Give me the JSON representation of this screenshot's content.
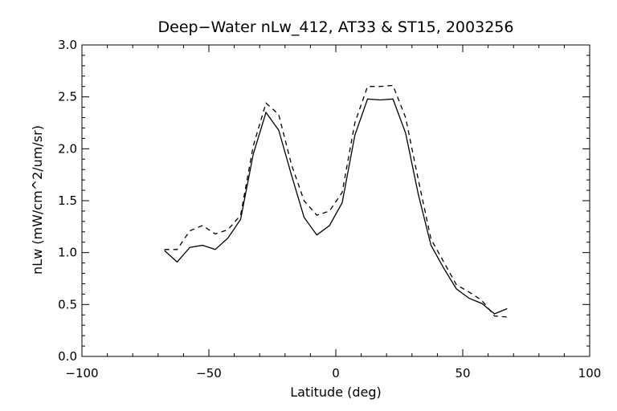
{
  "chart_data": {
    "type": "line",
    "title": "Deep−Water nLw_412, AT33 & ST15, 2003256",
    "xlabel": "Latitude (deg)",
    "ylabel": "nLw (mW/cm^2/um/sr)",
    "xlim": [
      -100,
      100
    ],
    "ylim": [
      0.0,
      3.0
    ],
    "xticks": [
      "−100",
      "−50",
      "0",
      "50",
      "100"
    ],
    "xtick_values": [
      -100,
      -50,
      0,
      50,
      100
    ],
    "yticks": [
      "0.0",
      "0.5",
      "1.0",
      "1.5",
      "2.0",
      "2.5",
      "3.0"
    ],
    "ytick_values": [
      0.0,
      0.5,
      1.0,
      1.5,
      2.0,
      2.5,
      3.0
    ],
    "grid": false,
    "legend": "none",
    "series": [
      {
        "style": "solid",
        "color": "#000000",
        "x": [
          -67.5,
          -62.5,
          -57.5,
          -52.5,
          -47.5,
          -42.5,
          -37.5,
          -32.5,
          -27.5,
          -22.5,
          -17.5,
          -12.5,
          -7.5,
          -2.5,
          2.5,
          7.5,
          12.5,
          17.5,
          22.5,
          27.5,
          32.5,
          37.5,
          42.5,
          47.5,
          52.5,
          57.5,
          62.5,
          67.5
        ],
        "y": [
          1.02,
          0.91,
          1.05,
          1.07,
          1.03,
          1.14,
          1.32,
          1.95,
          2.35,
          2.18,
          1.75,
          1.34,
          1.17,
          1.26,
          1.48,
          2.13,
          2.48,
          2.47,
          2.48,
          2.15,
          1.56,
          1.07,
          0.85,
          0.65,
          0.56,
          0.51,
          0.41,
          0.46
        ]
      },
      {
        "style": "dashed",
        "color": "#000000",
        "x": [
          -67.5,
          -62.5,
          -57.5,
          -52.5,
          -47.5,
          -42.5,
          -37.5,
          -32.5,
          -27.5,
          -22.5,
          -17.5,
          -12.5,
          -7.5,
          -2.5,
          2.5,
          7.5,
          12.5,
          17.5,
          22.5,
          27.5,
          32.5,
          37.5,
          42.5,
          47.5,
          52.5,
          57.5,
          62.5,
          67.5
        ],
        "y": [
          1.03,
          1.03,
          1.21,
          1.26,
          1.18,
          1.22,
          1.36,
          2.03,
          2.44,
          2.33,
          1.85,
          1.5,
          1.36,
          1.4,
          1.58,
          2.25,
          2.6,
          2.6,
          2.61,
          2.3,
          1.7,
          1.13,
          0.91,
          0.69,
          0.62,
          0.54,
          0.39,
          0.38
        ]
      }
    ]
  }
}
